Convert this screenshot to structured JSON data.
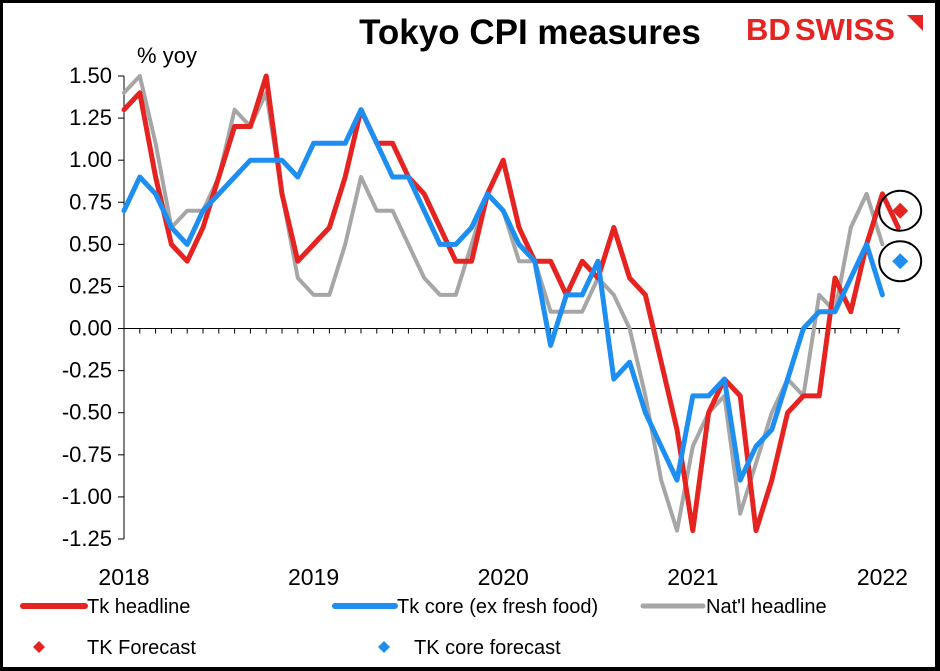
{
  "chart_data": {
    "type": "line",
    "title": "Tokyo CPI measures",
    "ylabel": "% yoy",
    "xlabel": "",
    "brand": {
      "text_left": "BD",
      "text_right": "SWISS",
      "color": "#e52320"
    },
    "ylim": [
      -1.25,
      1.5
    ],
    "yticks": [
      1.5,
      1.25,
      1.0,
      0.75,
      0.5,
      0.25,
      0.0,
      -0.25,
      -0.5,
      -0.75,
      -1.0,
      -1.25
    ],
    "ytick_labels": [
      "1.50",
      "1.25",
      "1.00",
      "0.75",
      "0.50",
      "0.25",
      "0.00",
      "-0.25",
      "-0.50",
      "-0.75",
      "-1.00",
      "-1.25"
    ],
    "x_start": "2018-01",
    "x_months": 50,
    "xtick_labels": [
      {
        "label": "2018",
        "index": 0
      },
      {
        "label": "2019",
        "index": 12
      },
      {
        "label": "2020",
        "index": 24
      },
      {
        "label": "2021",
        "index": 36
      },
      {
        "label": "2022",
        "index": 48
      }
    ],
    "series": [
      {
        "name": "Tk headline",
        "color": "#e52320",
        "width": 5,
        "values": [
          1.3,
          1.4,
          0.9,
          0.5,
          0.4,
          0.6,
          0.9,
          1.2,
          1.2,
          1.5,
          0.8,
          0.4,
          0.5,
          0.6,
          0.9,
          1.3,
          1.1,
          1.1,
          0.9,
          0.8,
          0.6,
          0.4,
          0.4,
          0.8,
          1.0,
          0.6,
          0.4,
          0.4,
          0.2,
          0.4,
          0.3,
          0.6,
          0.3,
          0.2,
          -0.2,
          -0.6,
          -1.2,
          -0.5,
          -0.3,
          -0.4,
          -1.2,
          -0.9,
          -0.5,
          -0.4,
          -0.4,
          0.3,
          0.1,
          0.5,
          0.8,
          0.6
        ]
      },
      {
        "name": "Tk core (ex fresh food)",
        "color": "#1e8ff0",
        "width": 5,
        "values": [
          0.7,
          0.9,
          0.8,
          0.6,
          0.5,
          0.7,
          0.8,
          0.9,
          1.0,
          1.0,
          1.0,
          0.9,
          1.1,
          1.1,
          1.1,
          1.3,
          1.1,
          0.9,
          0.9,
          0.7,
          0.5,
          0.5,
          0.6,
          0.8,
          0.7,
          0.5,
          0.4,
          -0.1,
          0.2,
          0.2,
          0.4,
          -0.3,
          -0.2,
          -0.5,
          -0.7,
          -0.9,
          -0.4,
          -0.4,
          -0.3,
          -0.9,
          -0.7,
          -0.6,
          -0.3,
          0.0,
          0.1,
          0.1,
          0.3,
          0.5,
          0.2
        ]
      },
      {
        "name": "Nat'l headline",
        "color": "#a6a6a6",
        "width": 4,
        "values": [
          1.4,
          1.5,
          1.1,
          0.6,
          0.7,
          0.7,
          0.9,
          1.3,
          1.2,
          1.4,
          0.8,
          0.3,
          0.2,
          0.2,
          0.5,
          0.9,
          0.7,
          0.7,
          0.5,
          0.3,
          0.2,
          0.2,
          0.5,
          0.8,
          0.7,
          0.4,
          0.4,
          0.1,
          0.1,
          0.1,
          0.3,
          0.2,
          0.0,
          -0.4,
          -0.9,
          -1.2,
          -0.7,
          -0.5,
          -0.4,
          -1.1,
          -0.8,
          -0.5,
          -0.3,
          -0.4,
          0.2,
          0.1,
          0.6,
          0.8,
          0.5
        ]
      }
    ],
    "forecasts": [
      {
        "name": "TK Forecast",
        "color": "#e52320",
        "index": 49,
        "value": 0.7
      },
      {
        "name": "TK core forecast",
        "color": "#1e8ff0",
        "index": 49,
        "value": 0.4
      }
    ]
  }
}
